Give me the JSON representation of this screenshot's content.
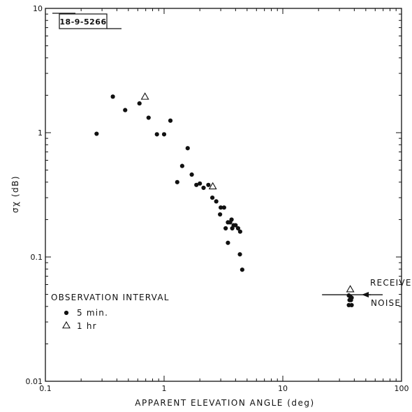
{
  "chart_data": {
    "type": "scatter",
    "figure_id": "18-9-5266",
    "xlabel": "APPARENT ELEVATION ANGLE (deg)",
    "ylabel": "σχ (dB)",
    "x_scale": "log",
    "y_scale": "log",
    "xlim": [
      0.1,
      100
    ],
    "ylim": [
      0.01,
      10
    ],
    "x_ticks": [
      "0.1",
      "1",
      "10",
      "100"
    ],
    "y_ticks": [
      "0.01",
      "0.1",
      "1",
      "10"
    ],
    "grid": false,
    "legend": {
      "title": "OBSERVATION INTERVAL",
      "placement": "lower-left",
      "entries": [
        {
          "marker": "filled-circle",
          "label": "5 min."
        },
        {
          "marker": "open-triangle",
          "label": "1 hr"
        }
      ]
    },
    "annotation": {
      "line1": "RECEIVER",
      "line2": "NOISE",
      "level": 0.051,
      "x_range": [
        20,
        55
      ]
    },
    "series": [
      {
        "marker": "filled-circle",
        "points": [
          [
            0.27,
            0.98
          ],
          [
            0.37,
            1.95
          ],
          [
            0.47,
            1.52
          ],
          [
            0.62,
            1.72
          ],
          [
            0.74,
            1.32
          ],
          [
            0.87,
            0.97
          ],
          [
            1.0,
            0.97
          ],
          [
            1.13,
            1.25
          ],
          [
            1.29,
            0.4
          ],
          [
            1.42,
            0.54
          ],
          [
            1.58,
            0.75
          ],
          [
            1.71,
            0.46
          ],
          [
            1.87,
            0.38
          ],
          [
            2.0,
            0.39
          ],
          [
            2.15,
            0.36
          ],
          [
            2.36,
            0.38
          ],
          [
            2.55,
            0.3
          ],
          [
            2.75,
            0.28
          ],
          [
            2.96,
            0.22
          ],
          [
            3.0,
            0.25
          ],
          [
            3.2,
            0.25
          ],
          [
            3.3,
            0.17
          ],
          [
            3.45,
            0.19
          ],
          [
            3.6,
            0.19
          ],
          [
            3.7,
            0.2
          ],
          [
            3.75,
            0.17
          ],
          [
            3.85,
            0.18
          ],
          [
            4.0,
            0.18
          ],
          [
            4.2,
            0.17
          ],
          [
            4.37,
            0.16
          ],
          [
            3.45,
            0.13
          ],
          [
            4.35,
            0.105
          ],
          [
            4.55,
            0.079
          ],
          [
            36,
            0.049
          ],
          [
            37,
            0.048
          ],
          [
            38,
            0.047
          ],
          [
            36.5,
            0.045
          ],
          [
            37.5,
            0.045
          ],
          [
            36,
            0.041
          ],
          [
            38,
            0.041
          ]
        ]
      },
      {
        "marker": "open-triangle",
        "points": [
          [
            0.69,
            1.95
          ],
          [
            2.57,
            0.37
          ],
          [
            37,
            0.055
          ]
        ]
      }
    ]
  }
}
